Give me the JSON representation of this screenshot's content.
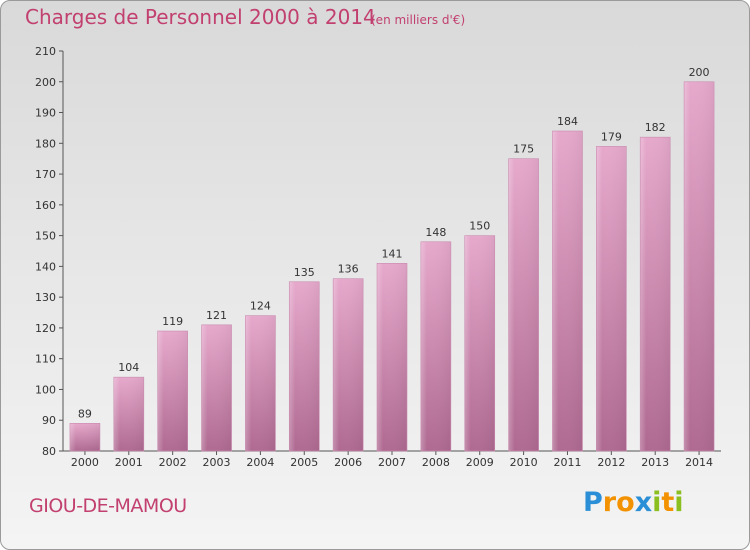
{
  "chart_data": {
    "type": "bar",
    "title": "Charges de Personnel 2000 à 2014",
    "subtitle": "(en milliers d'€)",
    "categories": [
      "2000",
      "2001",
      "2002",
      "2003",
      "2004",
      "2005",
      "2006",
      "2007",
      "2008",
      "2009",
      "2010",
      "2011",
      "2012",
      "2013",
      "2014"
    ],
    "values": [
      89,
      104,
      119,
      121,
      124,
      135,
      136,
      141,
      148,
      150,
      175,
      184,
      179,
      182,
      200
    ],
    "ylim": [
      80,
      210
    ],
    "yticks": [
      80,
      90,
      100,
      110,
      120,
      130,
      140,
      150,
      160,
      170,
      180,
      190,
      200,
      210
    ],
    "grid": false,
    "bar_color": "#d48ab0"
  },
  "commune": "GIOU-DE-MAMOU",
  "logo": {
    "letters": [
      "P",
      "r",
      "o",
      "x",
      "i",
      "t",
      "i"
    ],
    "colors": [
      "#2a8fd6",
      "#f39200",
      "#f39200",
      "#2a8fd6",
      "#8bbf1f",
      "#f39200",
      "#8bbf1f"
    ]
  }
}
